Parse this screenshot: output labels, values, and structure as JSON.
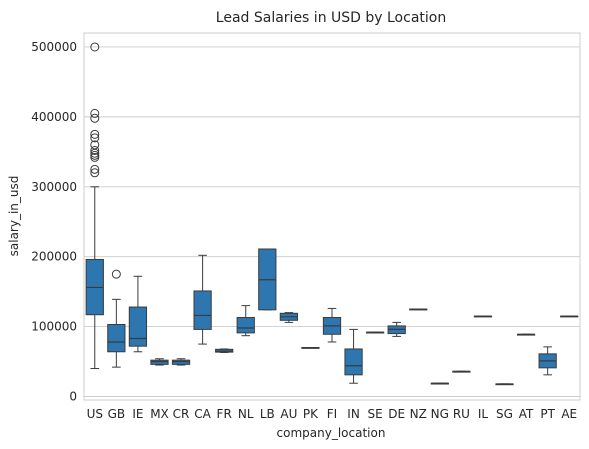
{
  "chart_data": {
    "type": "box",
    "title": "Lead Salaries in USD by Location",
    "xlabel": "company_location",
    "ylabel": "salary_in_usd",
    "ylim": [
      -5000,
      520000
    ],
    "yticks": [
      0,
      100000,
      200000,
      300000,
      400000,
      500000
    ],
    "grid": "horizontal",
    "color": "#2e76b0",
    "categories": [
      "US",
      "GB",
      "IE",
      "MX",
      "CR",
      "CA",
      "FR",
      "NL",
      "LB",
      "AU",
      "PK",
      "FI",
      "IN",
      "SE",
      "DE",
      "NZ",
      "NG",
      "RU",
      "IL",
      "SG",
      "AT",
      "PT",
      "AE"
    ],
    "boxes": [
      {
        "category": "US",
        "whislo": 40000,
        "q1": 117000,
        "med": 156000,
        "q3": 196000,
        "whishi": 300000,
        "fliers": [
          500000,
          405000,
          398000,
          375000,
          370000,
          360000,
          352000,
          348000,
          345000,
          342000,
          325000,
          320000
        ]
      },
      {
        "category": "GB",
        "whislo": 42000,
        "q1": 64000,
        "med": 78000,
        "q3": 103000,
        "whishi": 139000,
        "fliers": [
          175000
        ]
      },
      {
        "category": "IE",
        "whislo": 64000,
        "q1": 72000,
        "med": 83000,
        "q3": 128000,
        "whishi": 172000,
        "fliers": []
      },
      {
        "category": "MX",
        "whislo": 45000,
        "q1": 46000,
        "med": 50000,
        "q3": 52000,
        "whishi": 54000,
        "fliers": []
      },
      {
        "category": "CR",
        "whislo": 45000,
        "q1": 46000,
        "med": 50000,
        "q3": 52000,
        "whishi": 54000,
        "fliers": []
      },
      {
        "category": "CA",
        "whislo": 75000,
        "q1": 96000,
        "med": 116000,
        "q3": 151000,
        "whishi": 202000,
        "fliers": []
      },
      {
        "category": "FR",
        "whislo": 63000,
        "q1": 63500,
        "med": 65000,
        "q3": 67500,
        "whishi": 68000,
        "fliers": []
      },
      {
        "category": "NL",
        "whislo": 87000,
        "q1": 91000,
        "med": 98000,
        "q3": 113000,
        "whishi": 130000,
        "fliers": []
      },
      {
        "category": "LB",
        "whislo": 124000,
        "q1": 124000,
        "med": 167000,
        "q3": 211000,
        "whishi": 211000,
        "fliers": []
      },
      {
        "category": "AU",
        "whislo": 106000,
        "q1": 109000,
        "med": 114000,
        "q3": 119000,
        "whishi": 120000,
        "fliers": []
      },
      {
        "category": "PK",
        "whislo": 70000,
        "q1": 70000,
        "med": 70000,
        "q3": 70000,
        "whishi": 70000,
        "fliers": []
      },
      {
        "category": "FI",
        "whislo": 78000,
        "q1": 89000,
        "med": 101000,
        "q3": 113000,
        "whishi": 126000,
        "fliers": []
      },
      {
        "category": "IN",
        "whislo": 19000,
        "q1": 31000,
        "med": 44000,
        "q3": 68000,
        "whishi": 96000,
        "fliers": []
      },
      {
        "category": "SE",
        "whislo": 92000,
        "q1": 92000,
        "med": 92000,
        "q3": 92000,
        "whishi": 92000,
        "fliers": []
      },
      {
        "category": "DE",
        "whislo": 86000,
        "q1": 90000,
        "med": 96000,
        "q3": 101000,
        "whishi": 106000,
        "fliers": []
      },
      {
        "category": "NZ",
        "whislo": 125000,
        "q1": 125000,
        "med": 125000,
        "q3": 125000,
        "whishi": 125000,
        "fliers": []
      },
      {
        "category": "NG",
        "whislo": 19000,
        "q1": 19000,
        "med": 19000,
        "q3": 19000,
        "whishi": 19000,
        "fliers": []
      },
      {
        "category": "RU",
        "whislo": 36000,
        "q1": 36000,
        "med": 36000,
        "q3": 36000,
        "whishi": 36000,
        "fliers": []
      },
      {
        "category": "IL",
        "whislo": 115000,
        "q1": 115000,
        "med": 115000,
        "q3": 115000,
        "whishi": 115000,
        "fliers": []
      },
      {
        "category": "SG",
        "whislo": 18000,
        "q1": 18000,
        "med": 18000,
        "q3": 18000,
        "whishi": 18000,
        "fliers": []
      },
      {
        "category": "AT",
        "whislo": 89000,
        "q1": 89000,
        "med": 89000,
        "q3": 89000,
        "whishi": 89000,
        "fliers": []
      },
      {
        "category": "PT",
        "whislo": 31000,
        "q1": 41000,
        "med": 51000,
        "q3": 61000,
        "whishi": 71000,
        "fliers": []
      },
      {
        "category": "AE",
        "whislo": 115000,
        "q1": 115000,
        "med": 115000,
        "q3": 115000,
        "whishi": 115000,
        "fliers": []
      }
    ]
  }
}
